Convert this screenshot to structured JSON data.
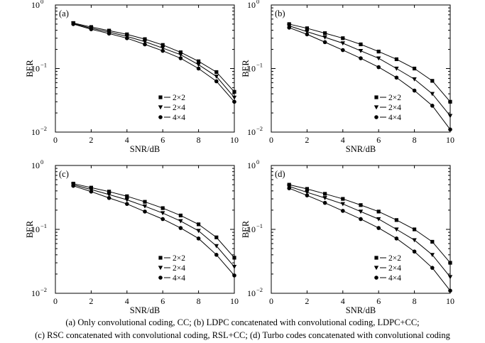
{
  "chart_data": [
    {
      "type": "line",
      "panel_label": "(a)",
      "xlabel": "SNR/dB",
      "ylabel": "BER",
      "xlim": [
        0,
        10
      ],
      "ylim": [
        0.01,
        1
      ],
      "yscale": "log",
      "xticks": [
        "0",
        "2",
        "4",
        "6",
        "8",
        "10"
      ],
      "legend_position": "lower-right",
      "x": [
        1,
        2,
        3,
        4,
        5,
        6,
        7,
        8,
        9,
        10
      ],
      "series": [
        {
          "name": "2×2",
          "marker": "square",
          "values": [
            0.52,
            0.45,
            0.395,
            0.345,
            0.29,
            0.235,
            0.18,
            0.13,
            0.088,
            0.043
          ]
        },
        {
          "name": "2×4",
          "marker": "triangle-down",
          "values": [
            0.51,
            0.43,
            0.375,
            0.32,
            0.265,
            0.21,
            0.165,
            0.115,
            0.075,
            0.035
          ]
        },
        {
          "name": "4×4",
          "marker": "circle",
          "values": [
            0.5,
            0.415,
            0.355,
            0.3,
            0.24,
            0.19,
            0.145,
            0.1,
            0.063,
            0.03
          ]
        }
      ]
    },
    {
      "type": "line",
      "panel_label": "(b)",
      "xlabel": "SNR/dB",
      "ylabel": "BER",
      "xlim": [
        0,
        10
      ],
      "ylim": [
        0.01,
        1
      ],
      "yscale": "log",
      "xticks": [
        "0",
        "2",
        "4",
        "6",
        "8",
        "10"
      ],
      "legend_position": "lower-right",
      "x": [
        1,
        2,
        3,
        4,
        5,
        6,
        7,
        8,
        9,
        10
      ],
      "series": [
        {
          "name": "2×2",
          "marker": "square",
          "values": [
            0.5,
            0.43,
            0.36,
            0.3,
            0.24,
            0.185,
            0.14,
            0.1,
            0.064,
            0.03
          ]
        },
        {
          "name": "2×4",
          "marker": "triangle-down",
          "values": [
            0.47,
            0.38,
            0.31,
            0.25,
            0.19,
            0.145,
            0.1,
            0.068,
            0.04,
            0.018
          ]
        },
        {
          "name": "4×4",
          "marker": "circle",
          "values": [
            0.44,
            0.345,
            0.26,
            0.195,
            0.145,
            0.105,
            0.072,
            0.045,
            0.026,
            0.011
          ]
        }
      ]
    },
    {
      "type": "line",
      "panel_label": "(c)",
      "xlabel": "SNR/dB",
      "ylabel": "BER",
      "xlim": [
        0,
        10
      ],
      "ylim": [
        0.01,
        1
      ],
      "yscale": "log",
      "xticks": [
        "0",
        "2",
        "4",
        "6",
        "8",
        "10"
      ],
      "legend_position": "lower-right",
      "x": [
        1,
        2,
        3,
        4,
        5,
        6,
        7,
        8,
        9,
        10
      ],
      "series": [
        {
          "name": "2×2",
          "marker": "square",
          "values": [
            0.52,
            0.45,
            0.39,
            0.33,
            0.27,
            0.215,
            0.165,
            0.12,
            0.075,
            0.036
          ]
        },
        {
          "name": "2×4",
          "marker": "triangle-down",
          "values": [
            0.5,
            0.42,
            0.35,
            0.29,
            0.23,
            0.18,
            0.135,
            0.095,
            0.055,
            0.026
          ]
        },
        {
          "name": "4×4",
          "marker": "circle",
          "values": [
            0.48,
            0.39,
            0.31,
            0.25,
            0.19,
            0.145,
            0.105,
            0.072,
            0.04,
            0.019
          ]
        }
      ]
    },
    {
      "type": "line",
      "panel_label": "(d)",
      "xlabel": "SNR/dB",
      "ylabel": "BER",
      "xlim": [
        0,
        10
      ],
      "ylim": [
        0.01,
        1
      ],
      "yscale": "log",
      "xticks": [
        "0",
        "2",
        "4",
        "6",
        "8",
        "10"
      ],
      "legend_position": "lower-right",
      "x": [
        1,
        2,
        3,
        4,
        5,
        6,
        7,
        8,
        9,
        10
      ],
      "series": [
        {
          "name": "2×2",
          "marker": "square",
          "values": [
            0.5,
            0.43,
            0.36,
            0.3,
            0.24,
            0.19,
            0.14,
            0.1,
            0.064,
            0.03
          ]
        },
        {
          "name": "2×4",
          "marker": "triangle-down",
          "values": [
            0.47,
            0.38,
            0.31,
            0.25,
            0.19,
            0.145,
            0.1,
            0.068,
            0.04,
            0.018
          ]
        },
        {
          "name": "4×4",
          "marker": "circle",
          "values": [
            0.44,
            0.34,
            0.26,
            0.195,
            0.145,
            0.105,
            0.072,
            0.045,
            0.025,
            0.011
          ]
        }
      ]
    }
  ],
  "caption": {
    "line1": "(a)  Only convolutional coding, CC; (b) LDPC concatenated with convolutional coding, LDPC+CC;",
    "line2": "(c) RSC concatenated with convolutional coding, RSL+CC; (d) Turbo codes concatenated with convolutional coding"
  }
}
